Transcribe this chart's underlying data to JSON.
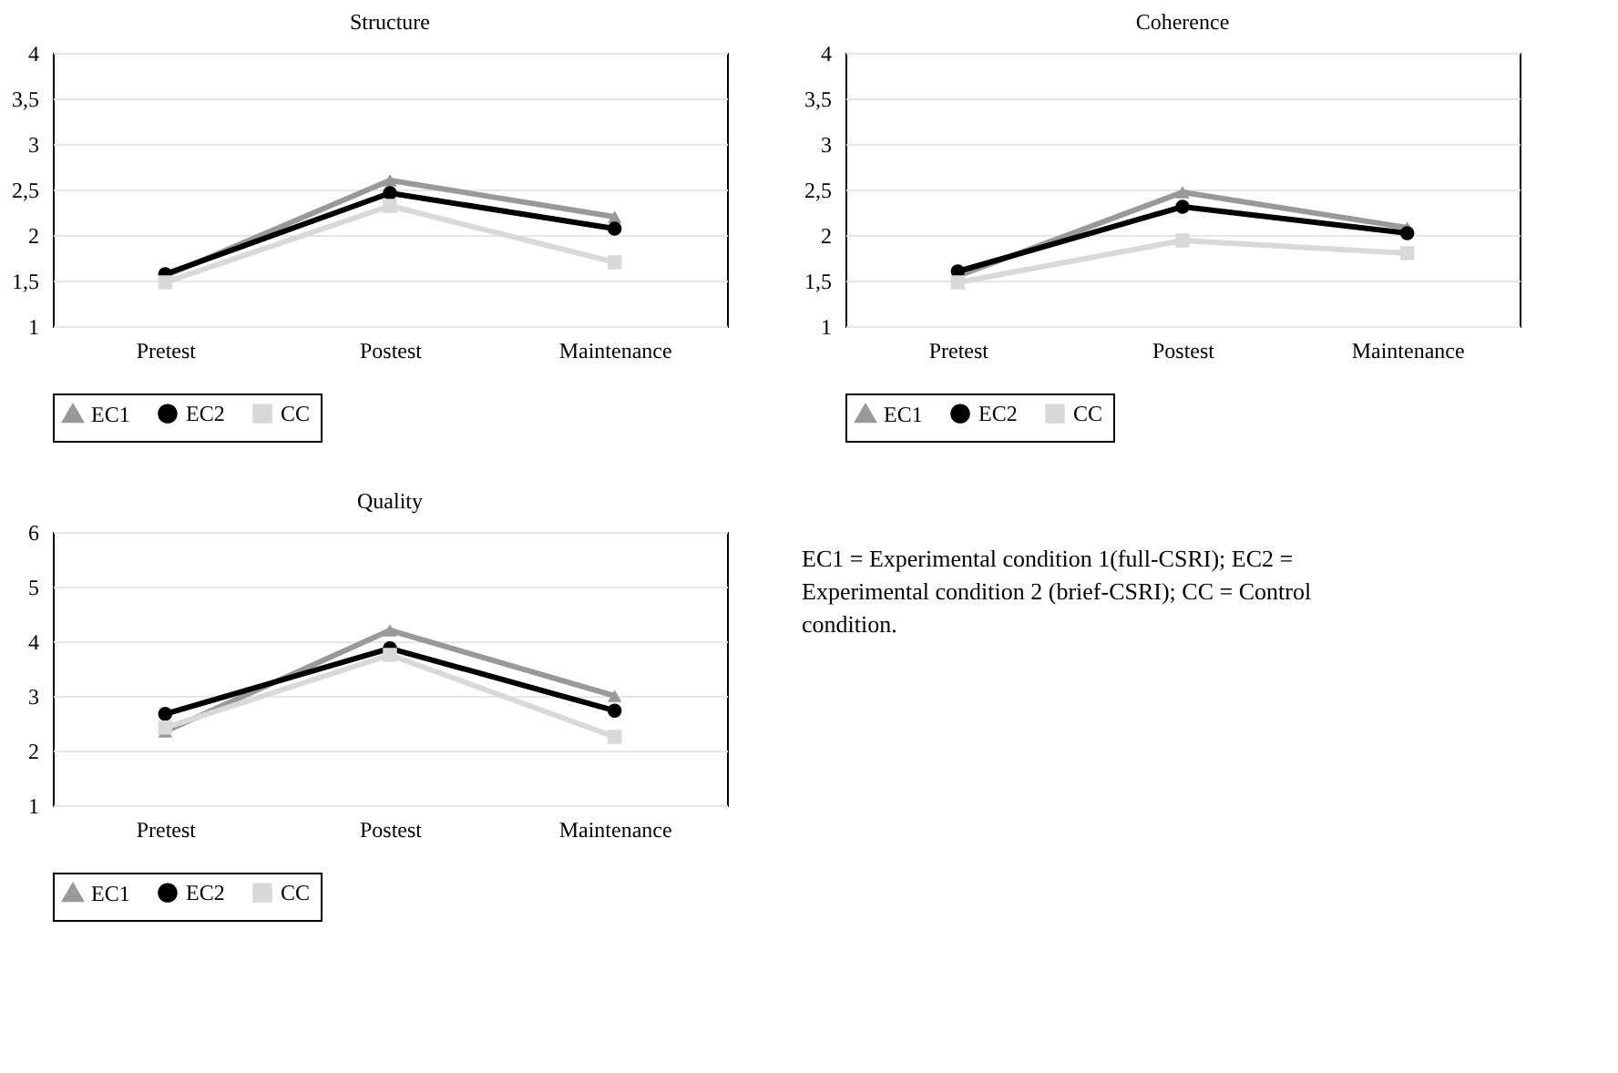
{
  "chart_data": [
    {
      "type": "line",
      "title": "Structure",
      "categories": [
        "Pretest",
        "Postest",
        "Maintenance"
      ],
      "series": [
        {
          "name": "EC1",
          "color": "#999999",
          "marker": "triangle",
          "values": [
            1.55,
            2.6,
            2.2
          ]
        },
        {
          "name": "EC2",
          "color": "#000000",
          "marker": "circle",
          "values": [
            1.57,
            2.46,
            2.07
          ]
        },
        {
          "name": "CC",
          "color": "#d9d9d9",
          "marker": "square",
          "values": [
            1.48,
            2.32,
            1.7
          ]
        }
      ],
      "ylim": [
        1,
        4
      ],
      "yticks": [
        1,
        {
          "value": 1.5,
          "label": "1,5"
        },
        2,
        {
          "value": 2.5,
          "label": "2,5"
        },
        3,
        {
          "value": 3.5,
          "label": "3,5"
        },
        4
      ],
      "grid": "y",
      "legend": "bottom"
    },
    {
      "type": "line",
      "title": "Coherence",
      "categories": [
        "Pretest",
        "Postest",
        "Maintenance"
      ],
      "series": [
        {
          "name": "EC1",
          "color": "#999999",
          "marker": "triangle",
          "values": [
            1.55,
            2.47,
            2.08
          ]
        },
        {
          "name": "EC2",
          "color": "#000000",
          "marker": "circle",
          "values": [
            1.6,
            2.31,
            2.02
          ]
        },
        {
          "name": "CC",
          "color": "#d9d9d9",
          "marker": "square",
          "values": [
            1.48,
            1.94,
            1.8
          ]
        }
      ],
      "ylim": [
        1,
        4
      ],
      "yticks": [
        1,
        {
          "value": 1.5,
          "label": "1,5"
        },
        2,
        {
          "value": 2.5,
          "label": "2,5"
        },
        3,
        {
          "value": 3.5,
          "label": "3,5"
        },
        4
      ],
      "grid": "y",
      "legend": "bottom"
    },
    {
      "type": "line",
      "title": "Quality",
      "categories": [
        "Pretest",
        "Postest",
        "Maintenance"
      ],
      "series": [
        {
          "name": "EC1",
          "color": "#999999",
          "marker": "triangle",
          "values": [
            2.35,
            4.2,
            3.0
          ]
        },
        {
          "name": "EC2",
          "color": "#000000",
          "marker": "circle",
          "values": [
            2.67,
            3.87,
            2.73
          ]
        },
        {
          "name": "CC",
          "color": "#d9d9d9",
          "marker": "square",
          "values": [
            2.42,
            3.75,
            2.25
          ]
        }
      ],
      "ylim": [
        1,
        6
      ],
      "yticks": [
        1,
        2,
        3,
        4,
        5,
        6
      ],
      "grid": "y",
      "legend": "bottom"
    },
    {
      "type": "other",
      "annotations": [
        "EC1 = Experimental condition 1(full-CSRI); EC2 = Experimental condition 2 (brief-CSRI); CC = Control condition."
      ]
    }
  ]
}
